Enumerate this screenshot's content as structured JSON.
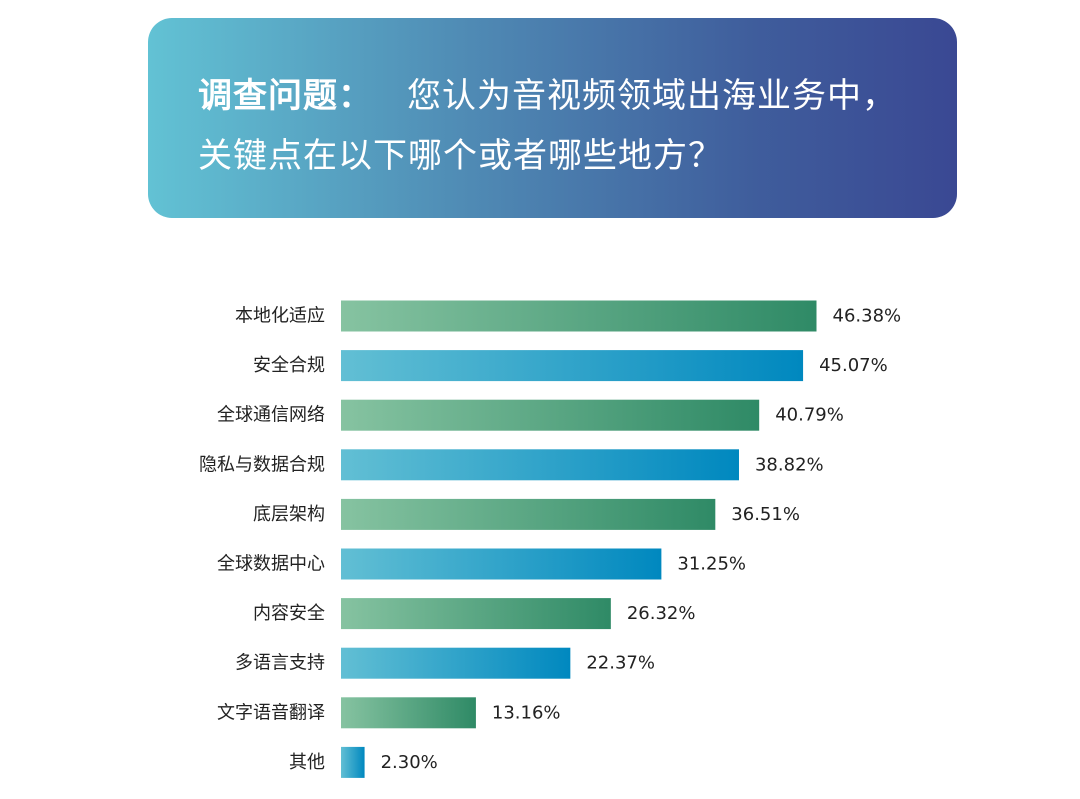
{
  "question": {
    "label": "调查问题：",
    "line1": "您认为音视频领域出海业务中，",
    "line2": "关键点在以下哪个或者哪些地方？"
  },
  "colors": {
    "green_start": "#86c3a1",
    "green_end": "#2f8a66",
    "blue_start": "#62bfd4",
    "blue_end": "#0088bf",
    "label_text": "#222222"
  },
  "chart_data": {
    "type": "bar",
    "orientation": "horizontal",
    "title": "",
    "xlabel": "",
    "ylabel": "",
    "xlim": [
      0,
      50
    ],
    "grid": false,
    "legend": "none",
    "value_format": "percent",
    "categories": [
      "本地化适应",
      "安全合规",
      "全球通信网络",
      "隐私与数据合规",
      "底层架构",
      "全球数据中心",
      "内容安全",
      "多语言支持",
      "文字语音翻译",
      "其他"
    ],
    "values": [
      46.38,
      45.07,
      40.79,
      38.82,
      36.51,
      31.25,
      26.32,
      22.37,
      13.16,
      2.3
    ],
    "value_labels": [
      "46.38%",
      "45.07%",
      "40.79%",
      "38.82%",
      "36.51%",
      "31.25%",
      "26.32%",
      "22.37%",
      "13.16%",
      "2.30%"
    ],
    "bar_colors": [
      "green",
      "blue",
      "green",
      "blue",
      "green",
      "blue",
      "green",
      "blue",
      "green",
      "blue"
    ]
  }
}
